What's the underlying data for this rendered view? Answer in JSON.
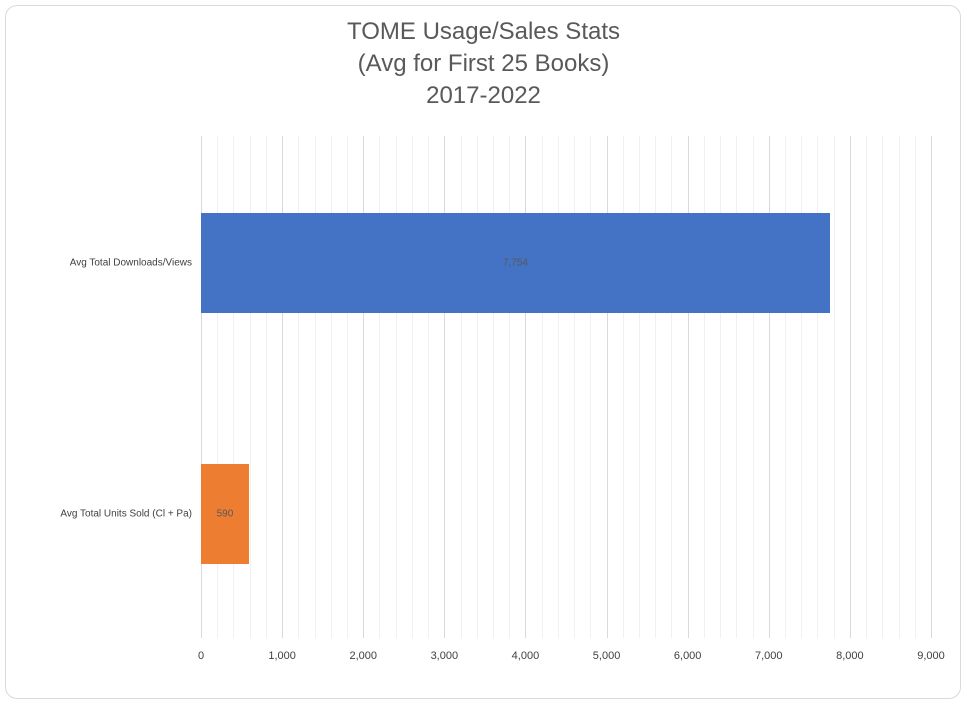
{
  "chart_data": {
    "type": "bar",
    "orientation": "horizontal",
    "title": "TOME Usage/Sales Stats (Avg for First 25 Books) 2017-2022",
    "title_lines": [
      "TOME Usage/Sales Stats",
      "(Avg for First 25 Books)",
      "2017-2022"
    ],
    "categories": [
      "Avg Total Downloads/Views",
      "Avg Total Units Sold (Cl + Pa)"
    ],
    "values": [
      7754,
      590
    ],
    "data_labels": [
      "7,754",
      "590"
    ],
    "colors": [
      "#4472c4",
      "#ed7d31"
    ],
    "xlabel": "",
    "ylabel": "",
    "xlim": [
      0,
      9000
    ],
    "x_ticks": [
      0,
      1000,
      2000,
      3000,
      4000,
      5000,
      6000,
      7000,
      8000,
      9000
    ],
    "x_tick_labels": [
      "0",
      "1,000",
      "2,000",
      "3,000",
      "4,000",
      "5,000",
      "6,000",
      "7,000",
      "8,000",
      "9,000"
    ],
    "grid": {
      "major_step": 1000,
      "minor_step": 200,
      "vertical": true
    },
    "legend": null
  }
}
